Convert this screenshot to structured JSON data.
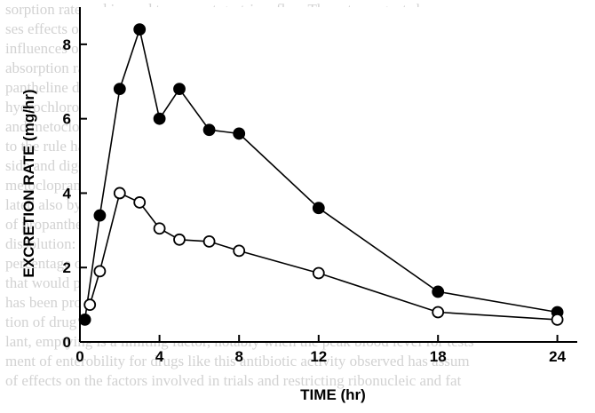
{
  "background_text": [
    "sorption rate and is used to prevent gastric reflux. These two agents have opp",
    "ses effects on absorption of other drugs, presumably because of their opposite",
    "influences on the stomach-emptying rate. Typically, metoclopramide increases",
    "absorption rate of acetaminophen, ethanol, levodopa, and tetracycline, whereas",
    "pantheline decreases the absorption rate of acetaminophen and delays that",
    "hydrochlorothiazide. Although these results suggest the possibility of a tran",
    "and metoclopramide of all agents, a general rule regarding drug absorption is diffic",
    "to the rule have already been reported. Specifically, the absorption of chlorothiazide",
    "side and digoxin has been reported to be increased by propantheline and decreased",
    "metoclopramide.",
    "lated also by absorption of several children's medications and digoxin in the presence",
    "of propantheline, and the opposite effect with metoclopramide, probably reflects",
    "dissolution: metoclopramide absorption slower stomach emptying may increase",
    "percentage of the dose of digoxin dissolved before it passes into the small inte",
    "that would provide explanation involving saturable or slow step in the absorptio",
    "has been proposed for chlorothiazide but has yet to be confirmed.",
    "tion of drug clearance: For drugs that are absorbed rapidly, particularly in",
    "lant, emptying is a limiting factor, notably when the peak blood level for tests",
    "ment of enterobility for drugs like this antibiotic activity observed has assum",
    "of effects on the factors involved in trials and restricting ribonucleic and fat"
  ],
  "chart_data": {
    "type": "line",
    "title": "",
    "xlabel": "TIME (hr)",
    "ylabel": "EXCRETION RATE (mg/hr)",
    "xlim": [
      0,
      25
    ],
    "ylim": [
      0,
      9
    ],
    "xticks": [
      0,
      4,
      8,
      12,
      18,
      24
    ],
    "yticks": [
      0,
      2,
      4,
      6,
      8
    ],
    "grid": false,
    "legend": "none",
    "series": [
      {
        "marker": "filled-circle",
        "x": [
          0.25,
          1,
          2,
          3,
          4,
          5,
          6.5,
          8,
          12,
          18,
          24
        ],
        "y": [
          0.6,
          3.4,
          6.8,
          8.4,
          6.0,
          6.8,
          5.7,
          5.6,
          3.6,
          1.35,
          0.8
        ]
      },
      {
        "marker": "open-circle",
        "x": [
          0.5,
          1,
          2,
          3,
          4,
          5,
          6.5,
          8,
          12,
          18,
          24
        ],
        "y": [
          1.0,
          1.9,
          4.0,
          3.75,
          3.05,
          2.75,
          2.7,
          2.45,
          1.85,
          0.8,
          0.6
        ]
      }
    ]
  }
}
